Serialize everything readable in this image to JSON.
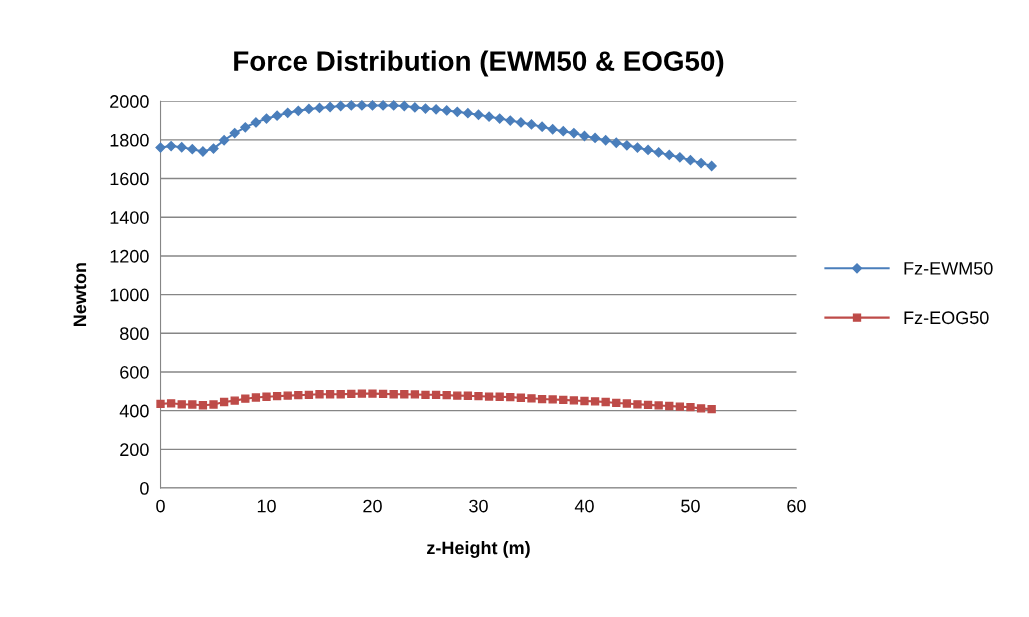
{
  "chart_data": {
    "type": "line",
    "title": "Force Distribution (EWM50 & EOG50)",
    "xlabel": "z-Height (m)",
    "ylabel": "Newton",
    "x": [
      0,
      1,
      2,
      3,
      4,
      5,
      6,
      7,
      8,
      9,
      10,
      11,
      12,
      13,
      14,
      15,
      16,
      17,
      18,
      19,
      20,
      21,
      22,
      23,
      24,
      25,
      26,
      27,
      28,
      29,
      30,
      31,
      32,
      33,
      34,
      35,
      36,
      37,
      38,
      39,
      40,
      41,
      42,
      43,
      44,
      45,
      46,
      47,
      48,
      49,
      50,
      51,
      52
    ],
    "series": [
      {
        "name": "Fz-EWM50",
        "color": "#4a7ebb",
        "marker": "diamond",
        "values": [
          1760,
          1768,
          1762,
          1752,
          1740,
          1755,
          1798,
          1835,
          1865,
          1890,
          1910,
          1925,
          1940,
          1950,
          1960,
          1965,
          1970,
          1975,
          1978,
          1978,
          1978,
          1978,
          1978,
          1975,
          1968,
          1962,
          1958,
          1952,
          1945,
          1938,
          1930,
          1920,
          1910,
          1900,
          1890,
          1880,
          1868,
          1855,
          1845,
          1835,
          1820,
          1810,
          1798,
          1785,
          1772,
          1760,
          1748,
          1735,
          1722,
          1710,
          1695,
          1680,
          1665
        ]
      },
      {
        "name": "Fz-EOG50",
        "color": "#be4b48",
        "marker": "square",
        "values": [
          435,
          438,
          433,
          432,
          428,
          432,
          445,
          452,
          462,
          468,
          472,
          475,
          478,
          480,
          482,
          485,
          485,
          485,
          487,
          488,
          488,
          487,
          485,
          485,
          484,
          482,
          482,
          480,
          478,
          477,
          475,
          473,
          472,
          470,
          467,
          464,
          460,
          458,
          456,
          453,
          450,
          448,
          445,
          440,
          437,
          433,
          430,
          427,
          424,
          421,
          418,
          412,
          408
        ]
      }
    ],
    "xlim": [
      0,
      60
    ],
    "xticks": [
      0,
      10,
      20,
      30,
      40,
      50,
      60
    ],
    "ylim": [
      0,
      2000
    ],
    "yticks": [
      0,
      200,
      400,
      600,
      800,
      1000,
      1200,
      1400,
      1600,
      1800,
      2000
    ],
    "grid": "y",
    "legend": "right",
    "line_style": "solid"
  }
}
